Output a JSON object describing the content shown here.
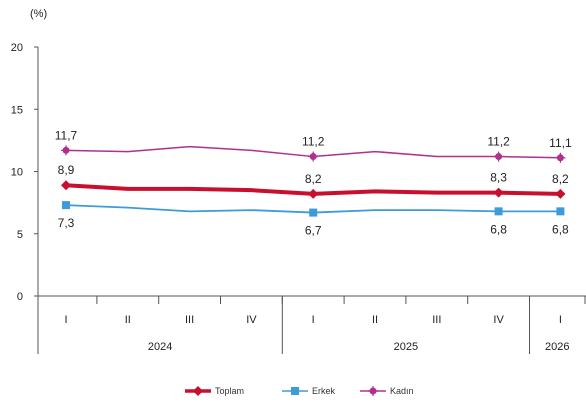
{
  "chart_data": {
    "type": "line",
    "unit_label": "(%)",
    "title": "",
    "xlabel": "",
    "ylabel": "",
    "ylim": [
      0,
      20
    ],
    "yticks": [
      "0",
      "5",
      "10",
      "15",
      "20"
    ],
    "grid": false,
    "legend_position": "bottom",
    "categories": [
      "I",
      "II",
      "III",
      "IV",
      "I",
      "II",
      "III",
      "IV",
      "I"
    ],
    "years": [
      {
        "label": "2024",
        "span": [
          0,
          3
        ]
      },
      {
        "label": "2025",
        "span": [
          4,
          7
        ]
      },
      {
        "label": "2026",
        "span": [
          8,
          8
        ]
      }
    ],
    "series": [
      {
        "name": "Toplam",
        "color": "#c8102e",
        "marker": "diamond",
        "values": [
          8.9,
          8.6,
          8.6,
          8.5,
          8.2,
          8.4,
          8.3,
          8.3,
          8.2
        ],
        "labels": {
          "0": "8,9",
          "4": "8,2",
          "7": "8,3",
          "8": "8,2"
        }
      },
      {
        "name": "Erkek",
        "color": "#3d9bd9",
        "marker": "square",
        "values": [
          7.3,
          7.1,
          6.8,
          6.9,
          6.7,
          6.9,
          6.9,
          6.8,
          6.8
        ],
        "labels": {
          "0": "7,3",
          "4": "6,7",
          "7": "6,8",
          "8": "6,8"
        }
      },
      {
        "name": "Kadın",
        "color": "#b0308f",
        "marker": "star",
        "values": [
          11.7,
          11.6,
          12.0,
          11.7,
          11.2,
          11.6,
          11.2,
          11.2,
          11.1
        ],
        "labels": {
          "0": "11,7",
          "4": "11,2",
          "7": "11,2",
          "8": "11,1"
        }
      }
    ]
  }
}
